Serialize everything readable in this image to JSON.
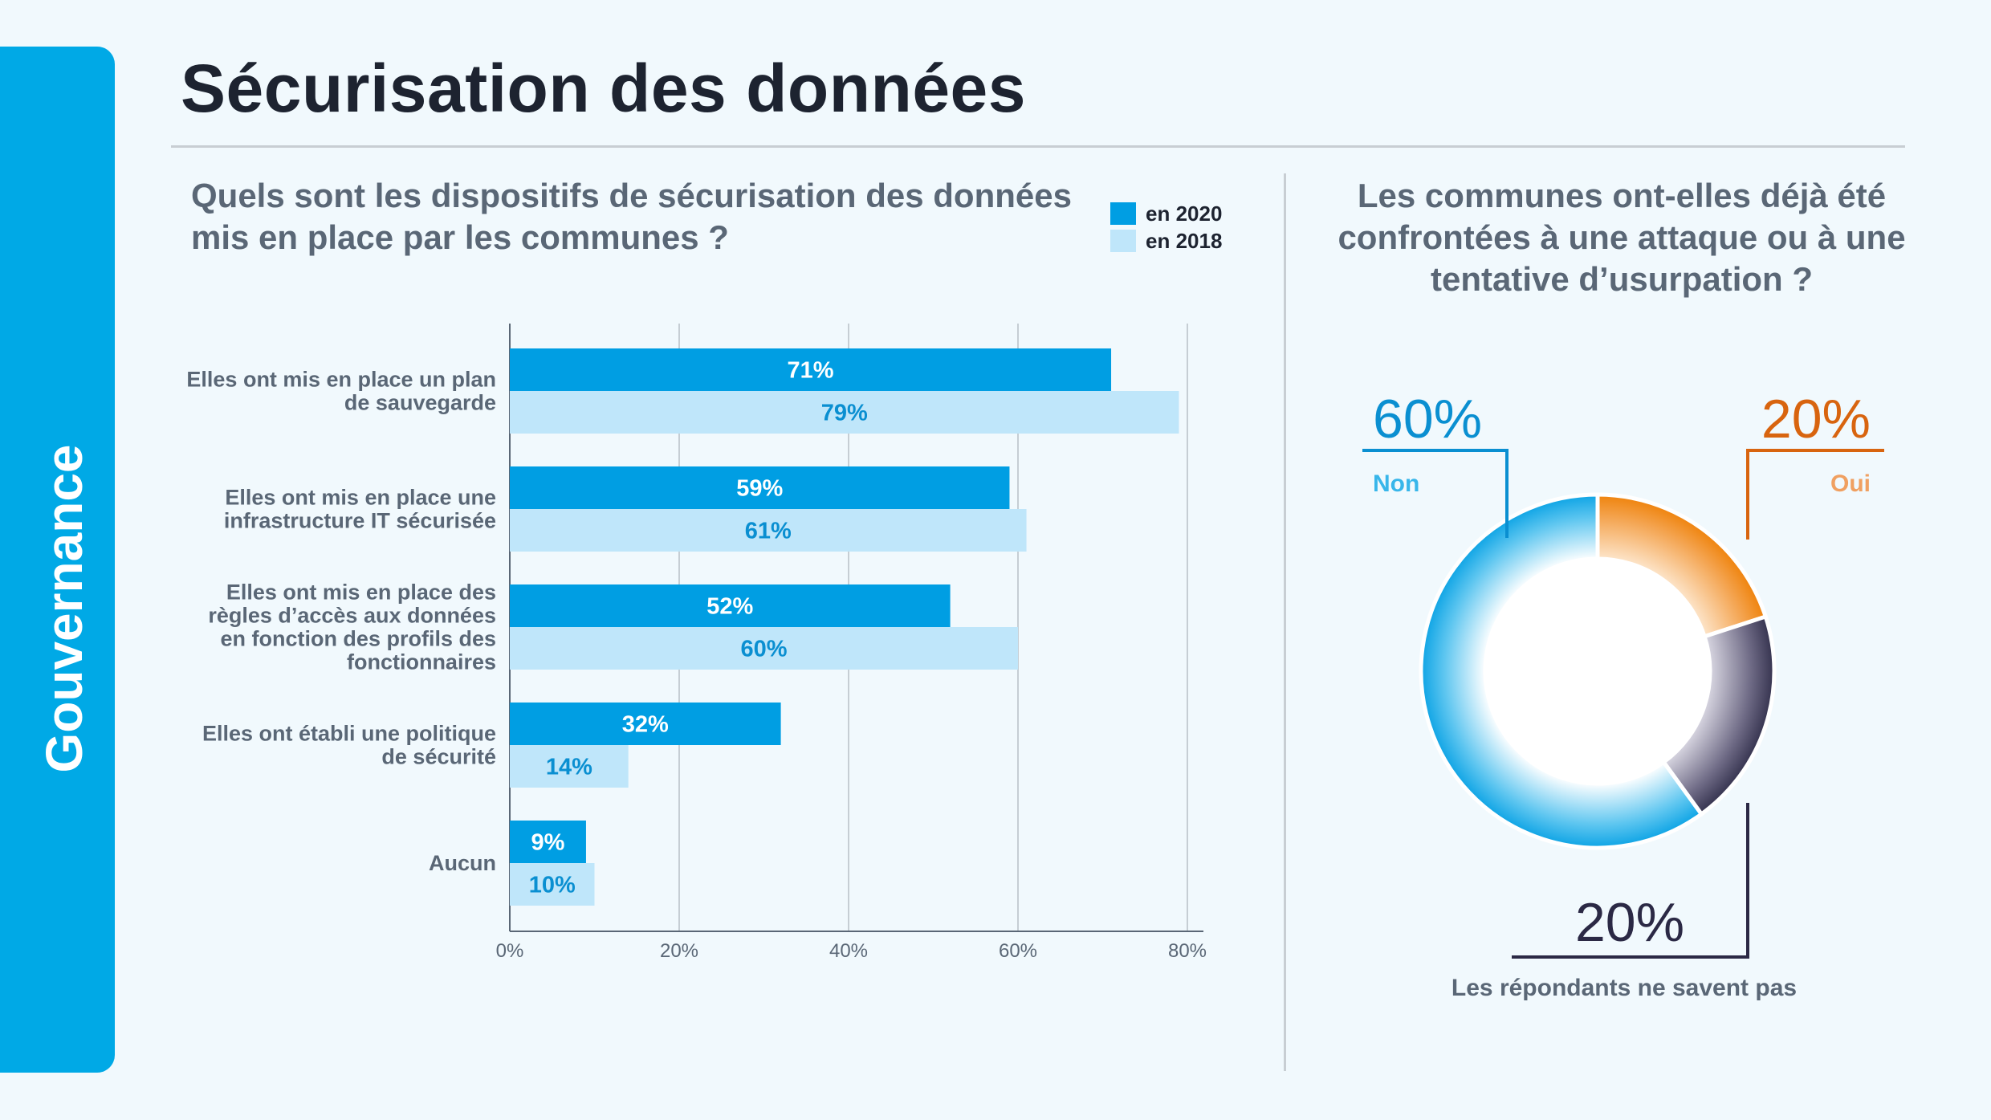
{
  "sidebar": {
    "label": "Gouvernance"
  },
  "page": {
    "title": "Sécurisation des données"
  },
  "colors": {
    "primary": "#009ee3",
    "light": "#bfe6fa",
    "sidebar": "#00a9e6",
    "orange": "#ee7d00",
    "dark": "#2b2945"
  },
  "chart_data": [
    {
      "type": "bar",
      "orientation": "horizontal",
      "title": "Quels sont les dispositifs de sécurisation des données mis en place par les communes ?",
      "categories": [
        [
          "Elles ont mis en place un plan",
          "de sauvegarde"
        ],
        [
          "Elles ont mis en place une",
          "infrastructure IT sécurisée"
        ],
        [
          "Elles ont mis en place des",
          "règles d’accès aux données",
          "en fonction des profils des",
          "fonctionnaires"
        ],
        [
          "Elles ont établi une politique",
          "de sécurité"
        ],
        [
          "Aucun"
        ]
      ],
      "series": [
        {
          "name": "en 2020",
          "color": "#009ee3",
          "values": [
            71,
            59,
            52,
            32,
            9
          ]
        },
        {
          "name": "en 2018",
          "color": "#bfe6fa",
          "values": [
            79,
            61,
            60,
            14,
            10
          ]
        }
      ],
      "xlim": [
        0,
        80
      ],
      "ticks": [
        "0%",
        "20%",
        "40%",
        "60%",
        "80%"
      ],
      "grid": true,
      "legend": "top-right"
    },
    {
      "type": "pie",
      "title": "Les communes ont-elles déjà été confrontées à une attaque ou à une tentative d’usurpation ?",
      "slices": [
        {
          "label": "Non",
          "value": 60,
          "display": "60%",
          "color": "#009ee3"
        },
        {
          "label": "Oui",
          "value": 20,
          "display": "20%",
          "color": "#ee7d00"
        },
        {
          "label": "Les répondants ne savent pas",
          "value": 20,
          "display": "20%",
          "color": "#2b2945"
        }
      ]
    }
  ]
}
